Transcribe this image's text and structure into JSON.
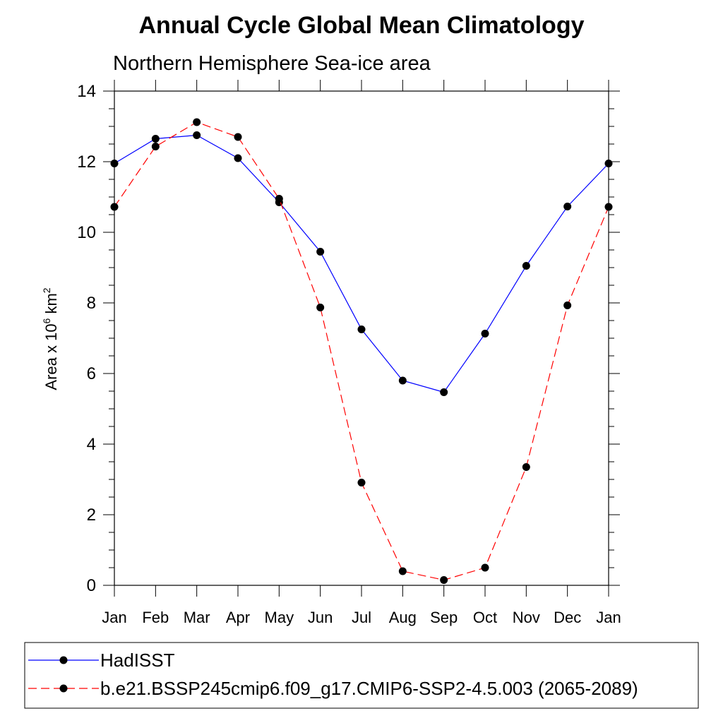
{
  "chart_data": {
    "type": "line",
    "title": "Annual Cycle Global Mean Climatology",
    "subtitle": "Northern Hemisphere Sea-ice area",
    "ylabel_base": "Area x 10",
    "ylabel_exp": "6",
    "ylabel_unit": " km",
    "ylabel_unit_exp": "2",
    "ylim": [
      0,
      14
    ],
    "yticks": [
      "0",
      "2",
      "4",
      "6",
      "8",
      "10",
      "12",
      "14"
    ],
    "categories": [
      "Jan",
      "Feb",
      "Mar",
      "Apr",
      "May",
      "Jun",
      "Jul",
      "Aug",
      "Sep",
      "Oct",
      "Nov",
      "Dec",
      "Jan"
    ],
    "series": [
      {
        "name": "HadISST",
        "color": "#0000ff",
        "style": "solid",
        "values": [
          11.95,
          12.65,
          12.75,
          12.1,
          10.85,
          9.45,
          7.25,
          5.8,
          5.47,
          7.13,
          9.05,
          10.73,
          11.95
        ]
      },
      {
        "name": "b.e21.BSSP245cmip6.f09_g17.CMIP6-SSP2-4.5.003 (2065-2089)",
        "color": "#ff0000",
        "style": "dashed",
        "values": [
          10.72,
          12.43,
          13.12,
          12.7,
          10.95,
          7.87,
          2.91,
          0.4,
          0.15,
          0.5,
          3.35,
          7.93,
          10.72
        ]
      }
    ],
    "legend_position": "bottom"
  }
}
